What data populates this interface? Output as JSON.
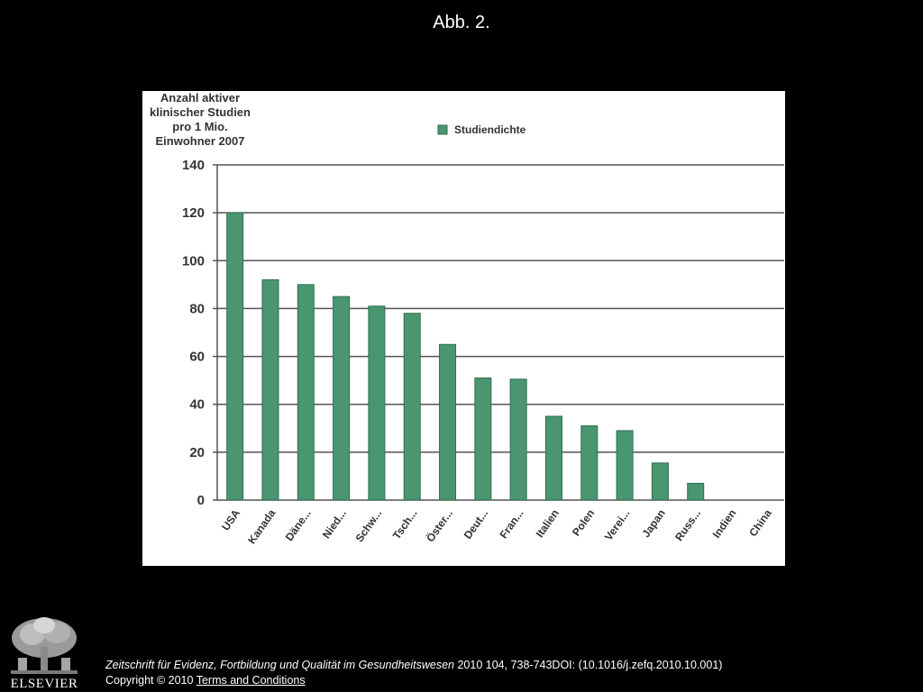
{
  "slide": {
    "title": "Abb. 2."
  },
  "chart_data": {
    "type": "bar",
    "ylabel_lines": [
      "Anzahl aktiver",
      "klinischer Studien",
      "pro 1 Mio.",
      "Einwohner 2007"
    ],
    "xlabel": "",
    "categories": [
      "USA",
      "Kanada",
      "Däne...",
      "Nied...",
      "Schw...",
      "Tsch...",
      "Öster...",
      "Deut...",
      "Fran...",
      "Italien",
      "Polen",
      "Verei...",
      "Japan",
      "Russ...",
      "Indien",
      "China"
    ],
    "series": [
      {
        "name": "Studiendichte",
        "values": [
          120,
          92,
          90,
          85,
          81,
          78,
          65,
          51,
          50.5,
          35,
          31,
          29,
          15.5,
          7,
          0,
          0
        ]
      }
    ],
    "ylim": [
      0,
      140
    ],
    "yticks": [
      0,
      20,
      40,
      60,
      80,
      100,
      120,
      140
    ],
    "grid": true,
    "legend_position": "top",
    "bar_color": "#4a9670",
    "bar_edge_color": "#2f6e50"
  },
  "footer": {
    "citation_italic": "Zeitschrift für Evidenz, Fortbildung und Qualität im Gesundheitswesen",
    "citation_rest": " 2010 104, 738-743DOI: (10.1016/j.zefq.2010.10.001)",
    "copyright": "Copyright © 2010 ",
    "terms_link": "Terms and Conditions"
  },
  "logo": {
    "wordmark": "ELSEVIER",
    "icon": "elsevier-tree-logo"
  }
}
